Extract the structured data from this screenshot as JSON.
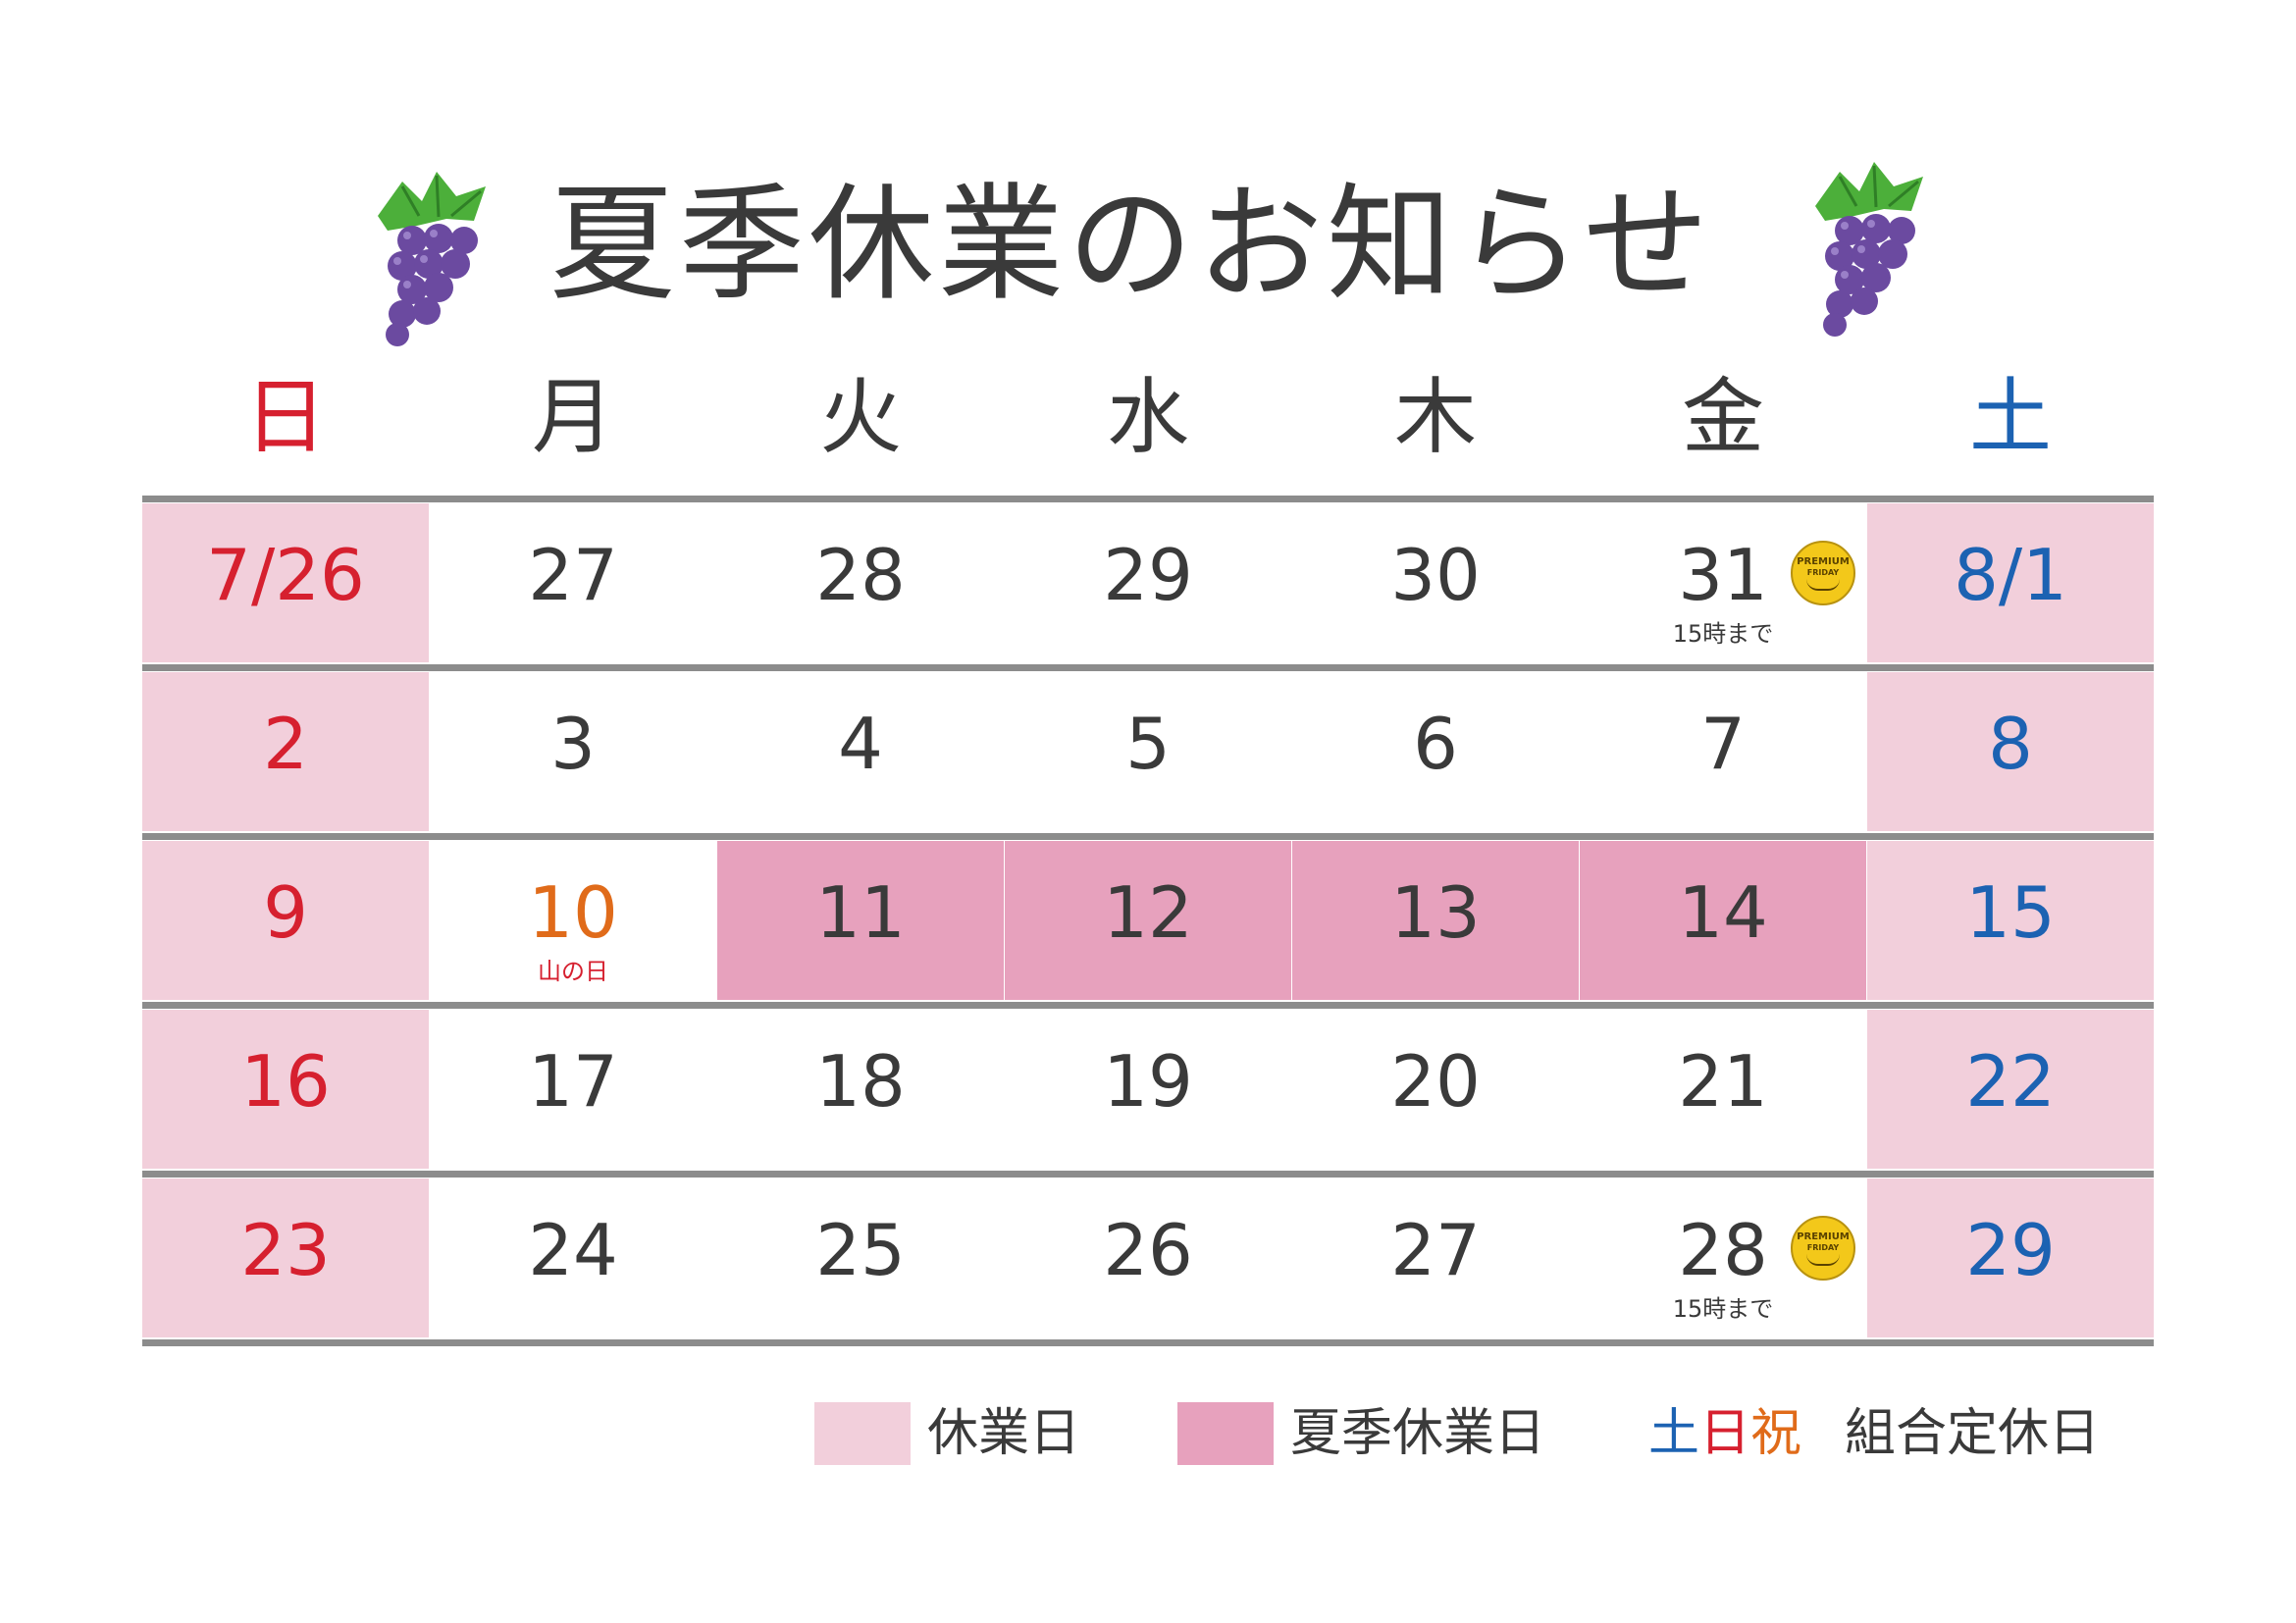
{
  "title": "夏季休業のお知らせ",
  "weekdays": [
    "日",
    "月",
    "火",
    "水",
    "木",
    "金",
    "土"
  ],
  "colors": {
    "sunday_red": "#d6202f",
    "saturday_blue": "#1c62b2",
    "holiday_orange": "#e06b1a",
    "closed_pink": "#f2cfdb",
    "summer_closed_pink": "#e7a1bd",
    "divider_gray": "#8c8c8c",
    "premium_friday_yellow": "#f3c81a"
  },
  "icons": {
    "grape_left": "grape-icon",
    "grape_right": "grape-icon",
    "premium_friday_badge": "premium-friday-badge-icon"
  },
  "premium_friday_badge": {
    "line1": "PREMIUM",
    "line2": "FRIDAY"
  },
  "weeks": [
    {
      "days": [
        {
          "label": "7/26",
          "type": "sun"
        },
        {
          "label": "27",
          "type": "weekday"
        },
        {
          "label": "28",
          "type": "weekday"
        },
        {
          "label": "29",
          "type": "weekday"
        },
        {
          "label": "30",
          "type": "weekday"
        },
        {
          "label": "31",
          "type": "weekday",
          "note": "15時まで",
          "premium_friday": true
        },
        {
          "label": "8/1",
          "type": "sat"
        }
      ]
    },
    {
      "days": [
        {
          "label": "2",
          "type": "sun"
        },
        {
          "label": "3",
          "type": "weekday"
        },
        {
          "label": "4",
          "type": "weekday"
        },
        {
          "label": "5",
          "type": "weekday"
        },
        {
          "label": "6",
          "type": "weekday"
        },
        {
          "label": "7",
          "type": "weekday"
        },
        {
          "label": "8",
          "type": "sat"
        }
      ]
    },
    {
      "days": [
        {
          "label": "9",
          "type": "sun"
        },
        {
          "label": "10",
          "type": "holiday",
          "note": "山の日"
        },
        {
          "label": "11",
          "type": "summer"
        },
        {
          "label": "12",
          "type": "summer"
        },
        {
          "label": "13",
          "type": "summer"
        },
        {
          "label": "14",
          "type": "summer"
        },
        {
          "label": "15",
          "type": "sat"
        }
      ]
    },
    {
      "days": [
        {
          "label": "16",
          "type": "sun"
        },
        {
          "label": "17",
          "type": "weekday"
        },
        {
          "label": "18",
          "type": "weekday"
        },
        {
          "label": "19",
          "type": "weekday"
        },
        {
          "label": "20",
          "type": "weekday"
        },
        {
          "label": "21",
          "type": "weekday"
        },
        {
          "label": "22",
          "type": "sat"
        }
      ]
    },
    {
      "days": [
        {
          "label": "23",
          "type": "sun"
        },
        {
          "label": "24",
          "type": "weekday"
        },
        {
          "label": "25",
          "type": "weekday"
        },
        {
          "label": "26",
          "type": "weekday"
        },
        {
          "label": "27",
          "type": "weekday"
        },
        {
          "label": "28",
          "type": "weekday",
          "note": "15時まで",
          "premium_friday": true
        },
        {
          "label": "29",
          "type": "sat"
        }
      ]
    }
  ],
  "legend": {
    "closed_label": "休業日",
    "summer_label": "夏季休業日",
    "weekend_holiday": {
      "sat": "土",
      "sun": "日",
      "hol": "祝"
    },
    "union_label": "組合定休日"
  }
}
